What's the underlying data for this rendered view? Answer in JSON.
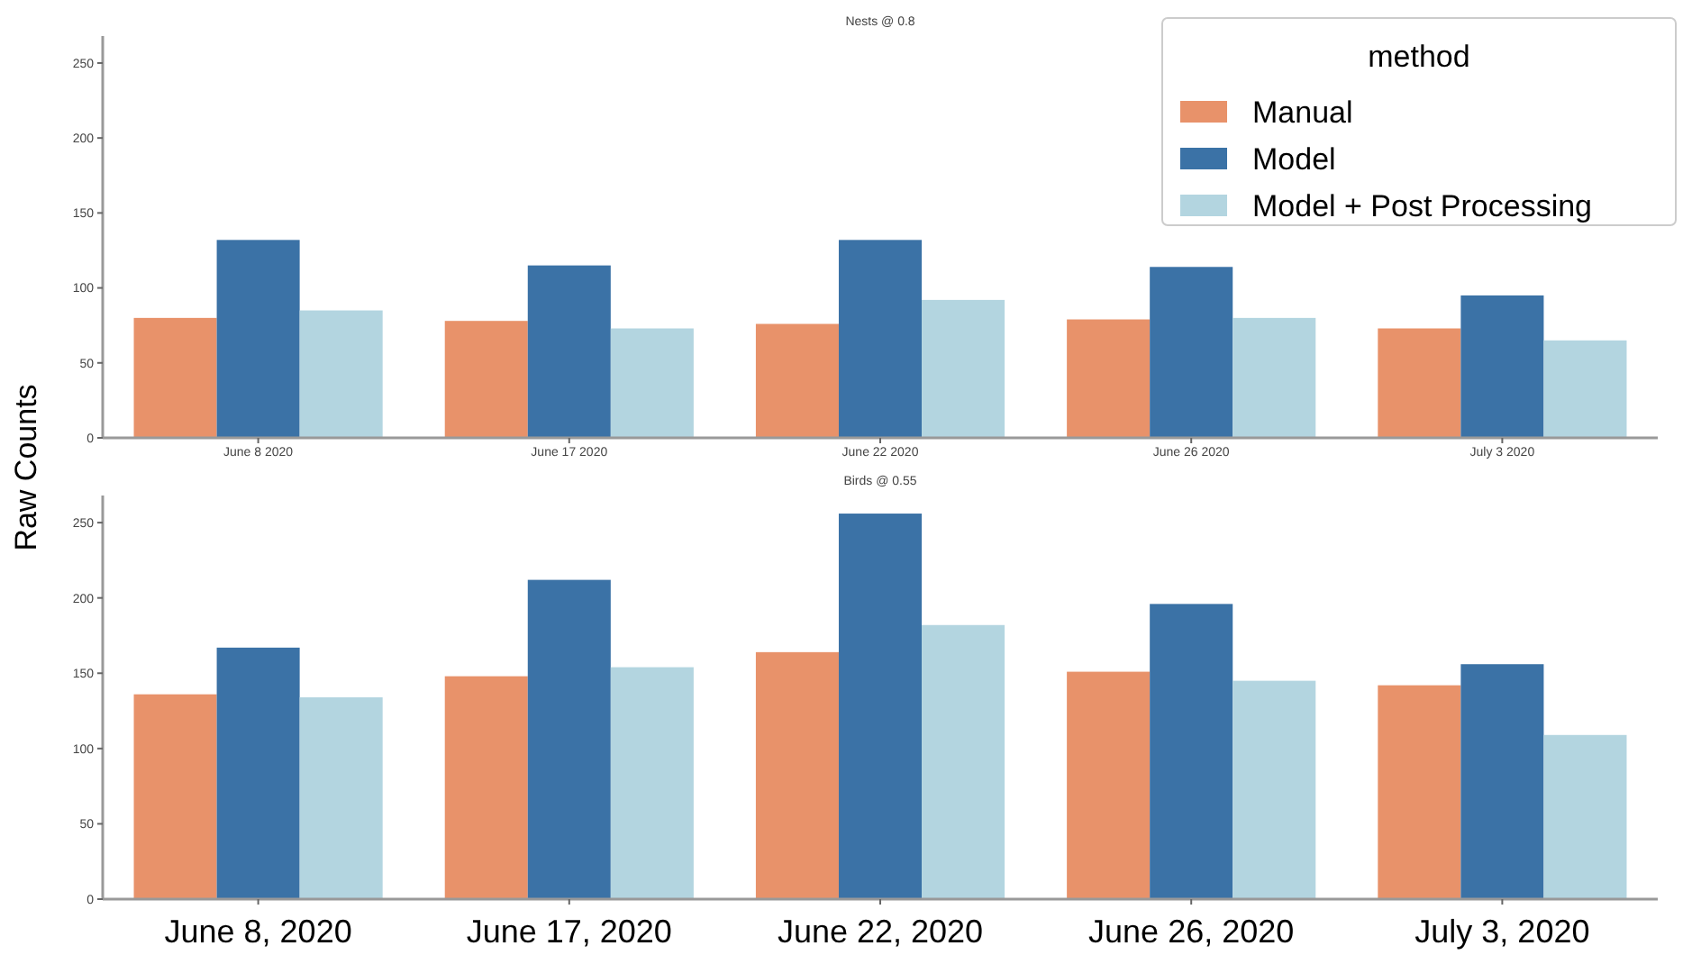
{
  "chart_data": [
    {
      "type": "bar",
      "title": "Nests @ 0.8",
      "ylabel": "Raw Counts",
      "legend_title": "method",
      "legend": "top right",
      "grid": false,
      "categories": [
        "June 8 2020",
        "June 17 2020",
        "June 22 2020",
        "June 26 2020",
        "July 3 2020"
      ],
      "ylim": [
        0,
        268
      ],
      "yticks": [
        0,
        50,
        100,
        150,
        200,
        250
      ],
      "series": [
        {
          "name": "Manual",
          "color": "#e8926a",
          "values": [
            80,
            78,
            76,
            79,
            73
          ]
        },
        {
          "name": "Model",
          "color": "#3b72a6",
          "values": [
            132,
            115,
            132,
            114,
            95
          ]
        },
        {
          "name": "Model + Post Processing",
          "color": "#b3d5e0",
          "values": [
            85,
            73,
            92,
            80,
            65
          ]
        }
      ]
    },
    {
      "type": "bar",
      "title": "Birds @ 0.55",
      "legend": false,
      "grid": false,
      "categories": [
        "June 8, 2020",
        "June 17, 2020",
        "June 22, 2020",
        "June 26, 2020",
        "July 3, 2020"
      ],
      "ylim": [
        0,
        268
      ],
      "yticks": [
        0,
        50,
        100,
        150,
        200,
        250
      ],
      "series": [
        {
          "color": "#e8926a",
          "values": [
            136,
            148,
            164,
            151,
            142
          ]
        },
        {
          "color": "#3b72a6",
          "values": [
            167,
            212,
            256,
            196,
            156
          ]
        },
        {
          "color": "#b3d5e0",
          "values": [
            134,
            154,
            182,
            145,
            109
          ]
        }
      ]
    }
  ]
}
